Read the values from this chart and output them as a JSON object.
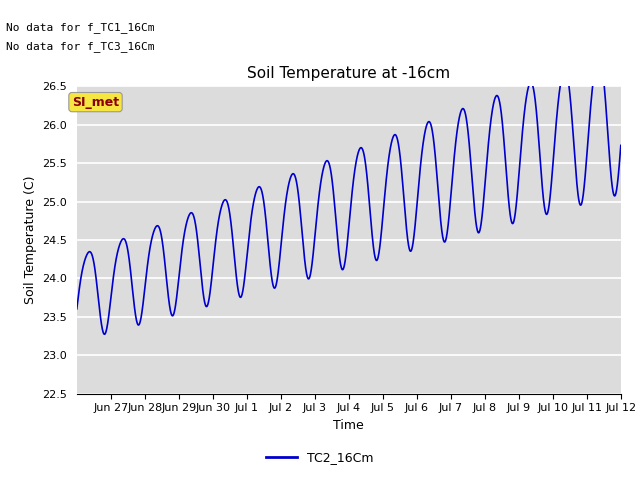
{
  "title": "Soil Temperature at -16cm",
  "xlabel": "Time",
  "ylabel": "Soil Temperature (C)",
  "ylim": [
    22.5,
    26.5
  ],
  "xlim": [
    0,
    16.0
  ],
  "bg_color": "#dcdcdc",
  "line_color": "#0000cc",
  "line_width": 1.2,
  "no_data_text": [
    "No data for f_TC1_16Cm",
    "No data for f_TC3_16Cm"
  ],
  "legend_label": "TC2_16Cm",
  "annotation_text": "SI_met",
  "xtick_positions": [
    1,
    2,
    3,
    4,
    5,
    6,
    7,
    8,
    9,
    10,
    11,
    12,
    13,
    14,
    15,
    16
  ],
  "xtick_labels": [
    "Jun 27",
    "Jun 28",
    "Jun 29",
    "Jun 30",
    "Jul 1",
    "Jul 2",
    "Jul 3",
    "Jul 4",
    "Jul 5",
    "Jul 6",
    "Jul 7",
    "Jul 8",
    "Jul 9",
    "Jul 10",
    "Jul 11",
    "Jul 12"
  ],
  "yticks": [
    22.5,
    23.0,
    23.5,
    24.0,
    24.5,
    25.0,
    25.5,
    26.0,
    26.5
  ],
  "title_fontsize": 11,
  "label_fontsize": 9,
  "tick_fontsize": 8,
  "legend_fontsize": 9,
  "nodata_fontsize": 8
}
